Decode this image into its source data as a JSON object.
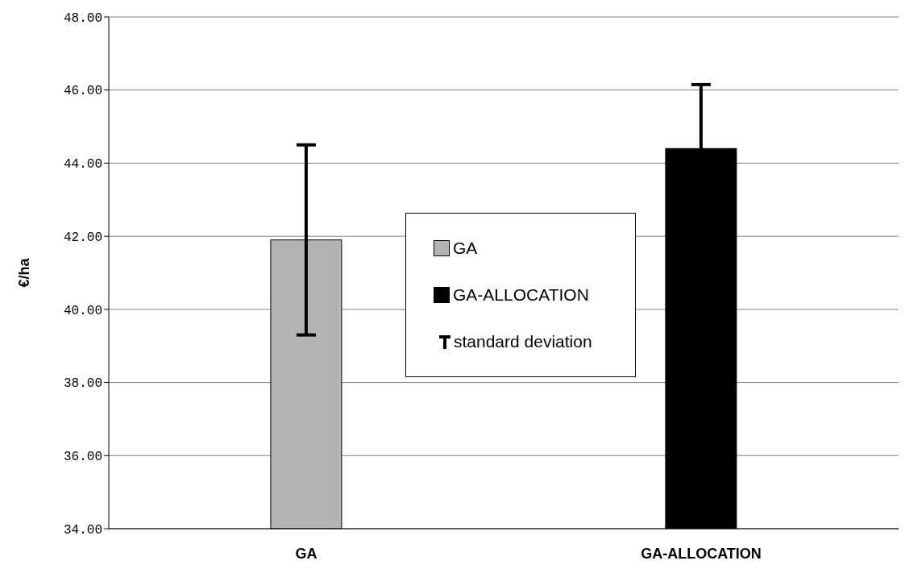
{
  "chart_data": {
    "type": "bar",
    "categories": [
      "GA",
      "GA-ALLOCATION"
    ],
    "stacked": true,
    "series": [
      {
        "name": "GA",
        "color": "#b3b3b3",
        "values": [
          41.9,
          null
        ],
        "errors": [
          2.6,
          null
        ]
      },
      {
        "name": "GA-ALLOCATION",
        "color": "#000000",
        "values": [
          null,
          44.4
        ],
        "errors": [
          null,
          1.75
        ]
      }
    ],
    "ylabel": "€/ha",
    "ylim": [
      34,
      48
    ],
    "yticks": [
      {
        "value": 34,
        "label": "34.00"
      },
      {
        "value": 36,
        "label": "36.00"
      },
      {
        "value": 38,
        "label": "38.00"
      },
      {
        "value": 40,
        "label": "40.00"
      },
      {
        "value": 42,
        "label": "42.00"
      },
      {
        "value": 44,
        "label": "44.00"
      },
      {
        "value": 46,
        "label": "46.00"
      },
      {
        "value": 48,
        "label": "48.00"
      }
    ],
    "grid": "y",
    "legend": "center",
    "annotations": [
      "standard deviation"
    ]
  }
}
